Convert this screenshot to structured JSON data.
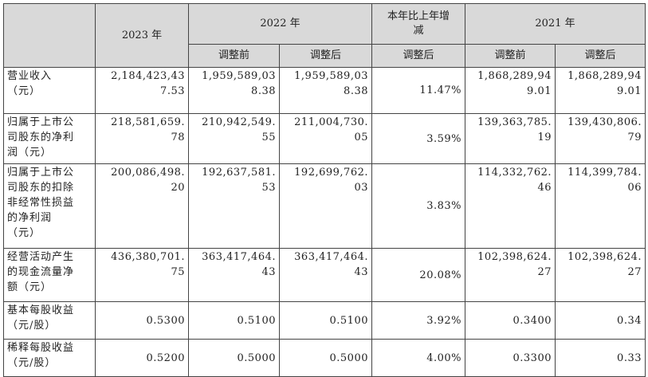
{
  "header": {
    "corner": "",
    "year_2023": "2023 年",
    "year_2022": "2022 年",
    "change": "本年比上年增减",
    "year_2021": "2021 年",
    "before_adj": "调整前",
    "after_adj": "调整后"
  },
  "rows": [
    {
      "label": "营业收入（元）",
      "label_lines": [
        "营业收入",
        "（元）"
      ],
      "v2023": [
        "2,184,423,43",
        "7.53"
      ],
      "v2022_before": [
        "1,959,589,03",
        "8.38"
      ],
      "v2022_after": [
        "1,959,589,03",
        "8.38"
      ],
      "change": "11.47%",
      "v2021_before": [
        "1,868,289,94",
        "9.01"
      ],
      "v2021_after": [
        "1,868,289,94",
        "9.01"
      ]
    },
    {
      "label": "归属于上市公司股东的净利润（元）",
      "label_lines": [
        "归属于上市公",
        "司股东的净利",
        "润（元）"
      ],
      "v2023": [
        "218,581,659.",
        "78"
      ],
      "v2022_before": [
        "210,942,549.",
        "55"
      ],
      "v2022_after": [
        "211,004,730.",
        "05"
      ],
      "change": "3.59%",
      "v2021_before": [
        "139,363,785.",
        "19"
      ],
      "v2021_after": [
        "139,430,806.",
        "79"
      ]
    },
    {
      "label": "归属于上市公司股东的扣除非经常性损益的净利润（元）",
      "label_lines": [
        "归属于上市公",
        "司股东的扣除",
        "非经常性损益",
        "的净利润",
        "（元）"
      ],
      "v2023": [
        "200,086,498.",
        "20"
      ],
      "v2022_before": [
        "192,637,581.",
        "53"
      ],
      "v2022_after": [
        "192,699,762.",
        "03"
      ],
      "change": "3.83%",
      "v2021_before": [
        "114,332,762.",
        "46"
      ],
      "v2021_after": [
        "114,399,784.",
        "06"
      ]
    },
    {
      "label": "经营活动产生的现金流量净额（元）",
      "label_lines": [
        "经营活动产生",
        "的现金流量净",
        "额（元）"
      ],
      "v2023": [
        "436,380,701.",
        "75"
      ],
      "v2022_before": [
        "363,417,464.",
        "43"
      ],
      "v2022_after": [
        "363,417,464.",
        "43"
      ],
      "change": "20.08%",
      "v2021_before": [
        "102,398,624.",
        "27"
      ],
      "v2021_after": [
        "102,398,624.",
        "27"
      ]
    },
    {
      "label": "基本每股收益（元/股）",
      "label_lines": [
        "基本每股收益",
        "（元/股）"
      ],
      "v2023": [
        "0.5300"
      ],
      "v2022_before": [
        "0.5100"
      ],
      "v2022_after": [
        "0.5100"
      ],
      "change": "3.92%",
      "v2021_before": [
        "0.3400"
      ],
      "v2021_after": [
        "0.34"
      ]
    },
    {
      "label": "稀释每股收益（元/股）",
      "label_lines": [
        "稀释每股收益",
        "（元/股）"
      ],
      "v2023": [
        "0.5200"
      ],
      "v2022_before": [
        "0.5000"
      ],
      "v2022_after": [
        "0.5000"
      ],
      "change": "4.00%",
      "v2021_before": [
        "0.3300"
      ],
      "v2021_after": [
        "0.33"
      ]
    }
  ]
}
